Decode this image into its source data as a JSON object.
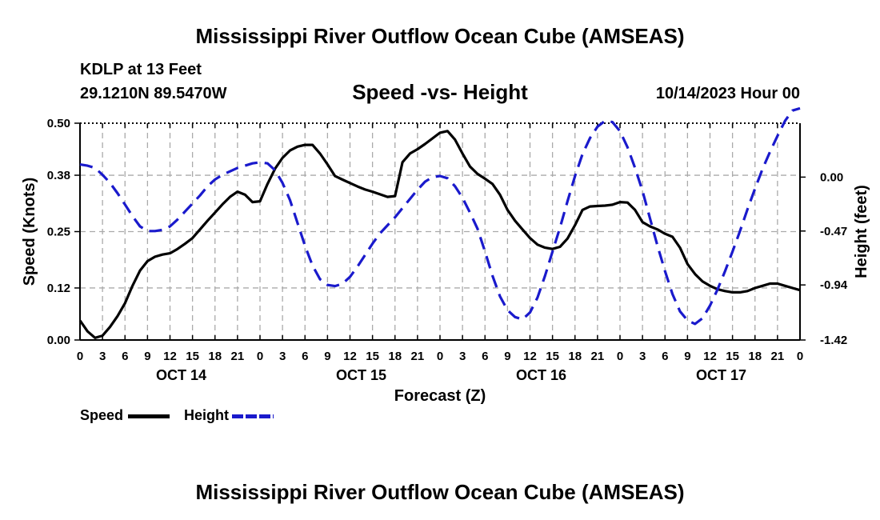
{
  "page": {
    "title_top": "Mississippi River Outflow Ocean Cube (AMSEAS)",
    "title_bottom": "Mississippi River Outflow Ocean Cube (AMSEAS)",
    "station_line": "KDLP at 13 Feet",
    "coords_line": "29.1210N  89.5470W",
    "datetime_line": "10/14/2023 Hour 00"
  },
  "chart_data": {
    "type": "line",
    "title": "Speed -vs- Height",
    "xlabel": "Forecast (Z)",
    "ylabel_left": "Speed (Knots)",
    "ylabel_right": "Height (feet)",
    "x_ticks": [
      "0",
      "3",
      "6",
      "9",
      "12",
      "15",
      "18",
      "21",
      "0",
      "3",
      "6",
      "9",
      "12",
      "15",
      "18",
      "21",
      "0",
      "3",
      "6",
      "9",
      "12",
      "15",
      "18",
      "21",
      "0",
      "3",
      "6",
      "9",
      "12",
      "15",
      "18",
      "21",
      "0"
    ],
    "day_labels": [
      {
        "label": "OCT 14",
        "hour": 12
      },
      {
        "label": "OCT 15",
        "hour": 36
      },
      {
        "label": "OCT 16",
        "hour": 60
      },
      {
        "label": "OCT 17",
        "hour": 84
      }
    ],
    "xlim": [
      0,
      96
    ],
    "ylim_left": [
      0,
      0.5
    ],
    "yticks_left": [
      "0.00",
      "0.12",
      "0.25",
      "0.38",
      "0.50"
    ],
    "ylim_right": [
      -1.42,
      0.47
    ],
    "yticks_right": [
      "-1.42",
      "-0.94",
      "-0.47",
      "0.00"
    ],
    "grid": true,
    "series": [
      {
        "name": "Speed",
        "axis": "left",
        "color": "#000000",
        "style": "solid",
        "x": [
          0,
          1,
          2,
          3,
          4,
          5,
          6,
          7,
          8,
          9,
          10,
          11,
          12,
          13,
          14,
          15,
          16,
          17,
          18,
          19,
          20,
          21,
          22,
          23,
          24,
          25,
          26,
          27,
          28,
          29,
          30,
          31,
          32,
          33,
          34,
          35,
          36,
          37,
          38,
          39,
          40,
          41,
          42,
          43,
          44,
          45,
          46,
          47,
          48,
          49,
          50,
          51,
          52,
          53,
          54,
          55,
          56,
          57,
          58,
          59,
          60,
          61,
          62,
          63,
          64,
          65,
          66,
          67,
          68,
          69,
          70,
          71,
          72,
          73,
          74,
          75,
          76,
          77,
          78,
          79,
          80,
          81,
          82,
          83,
          84,
          85,
          86,
          87,
          88,
          89,
          90,
          91,
          92,
          93,
          94,
          95,
          96
        ],
        "values": [
          0.045,
          0.02,
          0.005,
          0.01,
          0.03,
          0.055,
          0.085,
          0.125,
          0.16,
          0.182,
          0.192,
          0.197,
          0.2,
          0.21,
          0.222,
          0.235,
          0.255,
          0.275,
          0.294,
          0.313,
          0.33,
          0.342,
          0.335,
          0.318,
          0.32,
          0.36,
          0.395,
          0.42,
          0.437,
          0.446,
          0.45,
          0.45,
          0.43,
          0.405,
          0.378,
          0.37,
          0.362,
          0.354,
          0.347,
          0.342,
          0.336,
          0.33,
          0.332,
          0.41,
          0.43,
          0.44,
          0.452,
          0.465,
          0.478,
          0.482,
          0.462,
          0.43,
          0.4,
          0.383,
          0.372,
          0.36,
          0.335,
          0.3,
          0.275,
          0.255,
          0.235,
          0.22,
          0.213,
          0.21,
          0.215,
          0.234,
          0.265,
          0.3,
          0.308,
          0.309,
          0.31,
          0.312,
          0.318,
          0.317,
          0.3,
          0.272,
          0.262,
          0.255,
          0.245,
          0.238,
          0.213,
          0.175,
          0.152,
          0.135,
          0.125,
          0.117,
          0.113,
          0.11,
          0.11,
          0.113,
          0.12,
          0.125,
          0.13,
          0.13,
          0.125,
          0.12,
          0.115
        ]
      },
      {
        "name": "Height",
        "axis": "right",
        "color": "#1a1acc",
        "style": "dashed",
        "x": [
          0,
          1,
          2,
          3,
          4,
          5,
          6,
          7,
          8,
          9,
          10,
          11,
          12,
          13,
          14,
          15,
          16,
          17,
          18,
          19,
          20,
          21,
          22,
          23,
          24,
          25,
          26,
          27,
          28,
          29,
          30,
          31,
          32,
          33,
          34,
          35,
          36,
          37,
          38,
          39,
          40,
          41,
          42,
          43,
          44,
          45,
          46,
          47,
          48,
          49,
          50,
          51,
          52,
          53,
          54,
          55,
          56,
          57,
          58,
          59,
          60,
          61,
          62,
          63,
          64,
          65,
          66,
          67,
          68,
          69,
          70,
          71,
          72,
          73,
          74,
          75,
          76,
          77,
          78,
          79,
          80,
          81,
          82,
          83,
          84,
          85,
          86,
          87,
          88,
          89,
          90,
          91,
          92,
          93,
          94,
          95,
          96
        ],
        "values": [
          0.11,
          0.1,
          0.08,
          0.02,
          -0.05,
          -0.14,
          -0.24,
          -0.34,
          -0.43,
          -0.47,
          -0.47,
          -0.46,
          -0.43,
          -0.37,
          -0.3,
          -0.23,
          -0.16,
          -0.08,
          -0.02,
          0.02,
          0.05,
          0.08,
          0.1,
          0.12,
          0.13,
          0.12,
          0.06,
          -0.05,
          -0.2,
          -0.4,
          -0.6,
          -0.77,
          -0.89,
          -0.94,
          -0.95,
          -0.93,
          -0.87,
          -0.78,
          -0.68,
          -0.58,
          -0.49,
          -0.42,
          -0.35,
          -0.27,
          -0.19,
          -0.11,
          -0.04,
          0.0,
          0.01,
          -0.01,
          -0.08,
          -0.18,
          -0.31,
          -0.45,
          -0.65,
          -0.86,
          -1.04,
          -1.16,
          -1.22,
          -1.24,
          -1.18,
          -1.05,
          -0.86,
          -0.65,
          -0.44,
          -0.21,
          0.01,
          0.2,
          0.34,
          0.44,
          0.49,
          0.48,
          0.4,
          0.26,
          0.08,
          -0.12,
          -0.36,
          -0.6,
          -0.82,
          -1.02,
          -1.17,
          -1.25,
          -1.28,
          -1.23,
          -1.12,
          -0.98,
          -0.82,
          -0.65,
          -0.47,
          -0.28,
          -0.1,
          0.07,
          0.22,
          0.36,
          0.49,
          0.58,
          0.6
        ]
      }
    ],
    "legend": [
      {
        "label": "Speed",
        "color": "#000000"
      },
      {
        "label": "Height",
        "color": "#1a1acc"
      }
    ]
  }
}
